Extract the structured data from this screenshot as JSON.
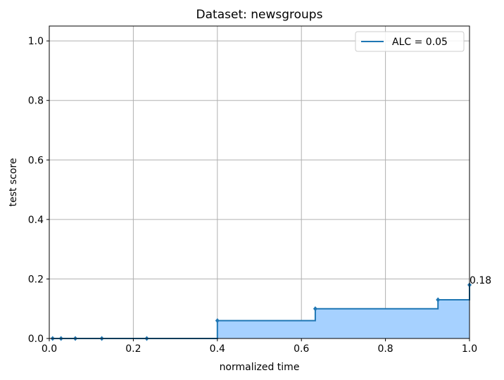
{
  "chart_data": {
    "type": "area",
    "title": "Dataset: newsgroups",
    "xlabel": "normalized time",
    "ylabel": "test score",
    "xlim": [
      0.0,
      1.0
    ],
    "ylim": [
      0.0,
      1.05
    ],
    "xticks": [
      "0.0",
      "0.2",
      "0.4",
      "0.6",
      "0.8",
      "1.0"
    ],
    "yticks": [
      "0.0",
      "0.2",
      "0.4",
      "0.6",
      "0.8",
      "1.0"
    ],
    "grid": true,
    "legend_position": "top-right",
    "series": [
      {
        "name": "ALC = 0.05",
        "step": "post",
        "color": "#1f77b4",
        "fill_color": "#a6d1ff",
        "x": [
          0.008,
          0.028,
          0.062,
          0.125,
          0.232,
          0.4,
          0.633,
          0.925,
          1.0
        ],
        "y": [
          0.0,
          0.0,
          0.0,
          0.0,
          0.0,
          0.06,
          0.1,
          0.13,
          0.18
        ]
      }
    ],
    "annotations": [
      {
        "text": "0.18",
        "x": 1.0,
        "y": 0.18
      }
    ]
  }
}
